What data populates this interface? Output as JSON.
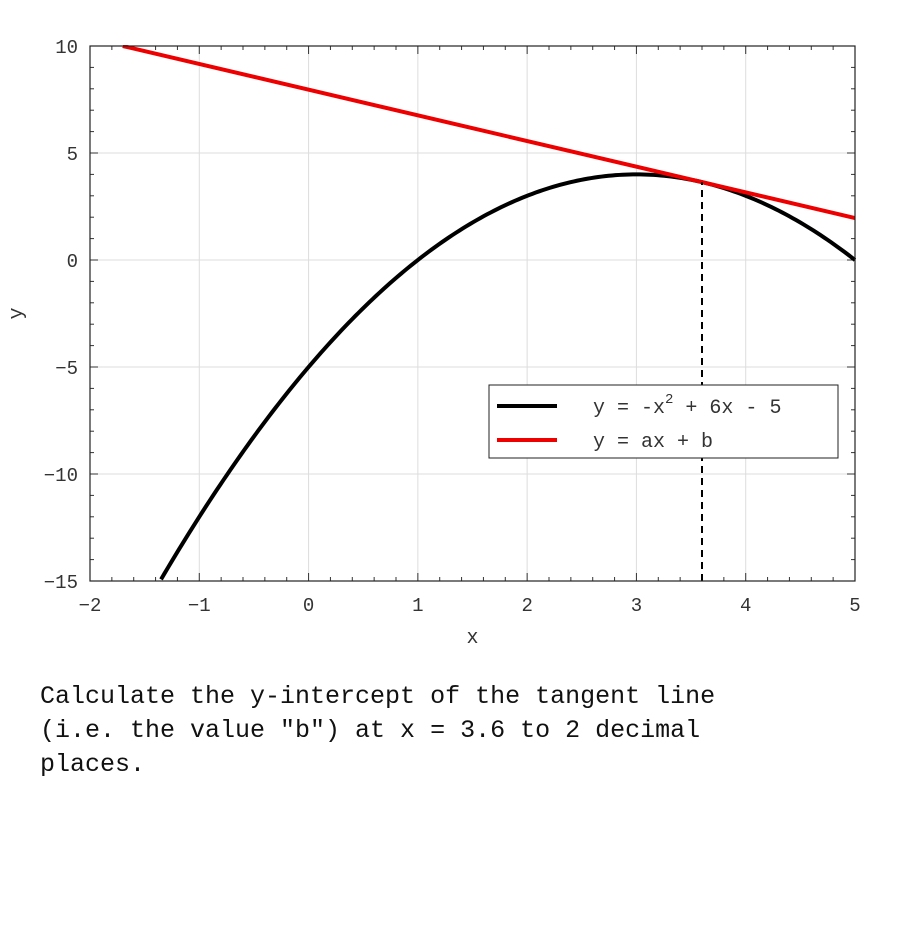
{
  "chart_data": {
    "type": "line",
    "title": "",
    "xlabel": "x",
    "ylabel": "y",
    "xlim": [
      -2,
      5
    ],
    "ylim": [
      -15,
      10
    ],
    "xticks": [
      -2,
      -1,
      0,
      1,
      2,
      3,
      4,
      5
    ],
    "xtick_labels": [
      "−2",
      "−1",
      "0",
      "1",
      "2",
      "3",
      "4",
      "5"
    ],
    "yticks": [
      -15,
      -10,
      -5,
      0,
      5,
      10
    ],
    "ytick_labels": [
      "−15",
      "−10",
      "−5",
      "0",
      "5",
      "10"
    ],
    "grid": true,
    "legend_position": "lower-right",
    "series": [
      {
        "name": "y = -x^2 + 6x - 5",
        "legend_main": "y = -x",
        "legend_sup": "2",
        "legend_tail": " + 6x - 5",
        "color": "#000000",
        "x": [
          -1.35,
          -1,
          -0.5,
          0,
          0.5,
          1,
          1.5,
          2,
          2.5,
          3,
          3.5,
          4,
          4.5,
          5
        ],
        "y": [
          -14.92,
          -12,
          -8.25,
          -5,
          -2.25,
          0,
          1.75,
          3,
          3.75,
          4,
          3.75,
          3,
          1.75,
          0
        ]
      },
      {
        "name": "y = ax + b",
        "legend_main": "y = ax + b",
        "legend_sup": "",
        "legend_tail": "",
        "color": "#ee0000",
        "x": [
          -1.7,
          5
        ],
        "y": [
          10,
          1.96
        ]
      }
    ],
    "annotations": [
      {
        "type": "vertical-dashed-line",
        "x": 3.6,
        "y_from": -15,
        "y_to": 3.64,
        "color": "#000000"
      }
    ]
  },
  "question": {
    "line1": "Calculate the y-intercept of the tangent line",
    "line2": "(i.e. the value \"b\") at x = 3.6 to 2 decimal",
    "line3": "places."
  }
}
